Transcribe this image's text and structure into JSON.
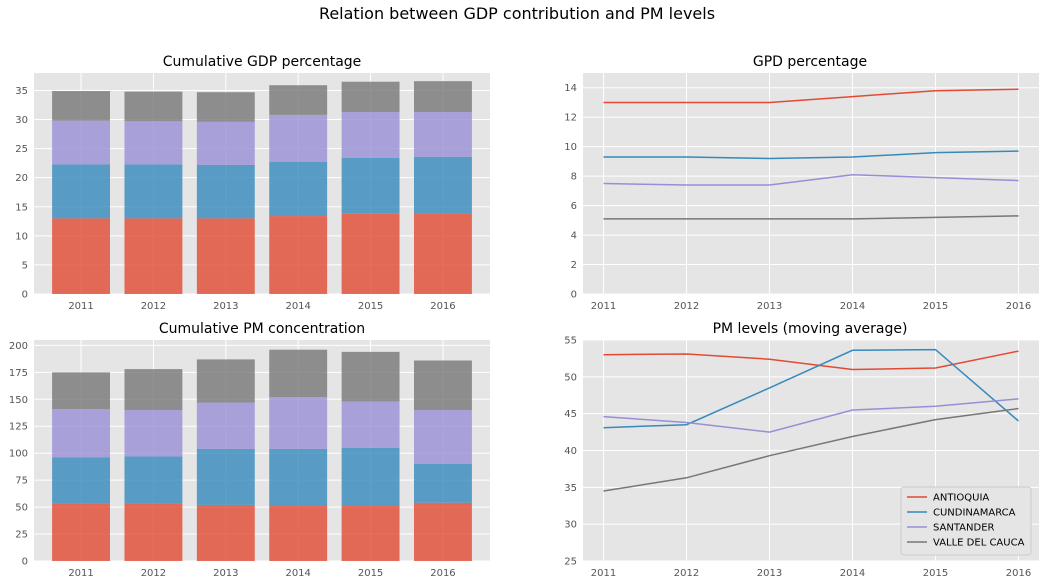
{
  "figure": {
    "title": "Relation between GDP contribution and PM levels"
  },
  "colors": {
    "ANTIOQUIA": "#E24A33",
    "CUNDINAMARCA": "#348ABD",
    "SANTANDER": "#988ED5",
    "VALLE DEL CAUCA": "#777777"
  },
  "chart_data": [
    {
      "type": "bar",
      "stacked": true,
      "title": "Cumulative GDP percentage",
      "categories": [
        "2011",
        "2012",
        "2013",
        "2014",
        "2015",
        "2016"
      ],
      "series": [
        {
          "name": "ANTIOQUIA",
          "values": [
            13.0,
            13.0,
            13.0,
            13.4,
            13.8,
            13.9
          ]
        },
        {
          "name": "CUNDINAMARCA",
          "values": [
            9.3,
            9.3,
            9.2,
            9.3,
            9.6,
            9.7
          ]
        },
        {
          "name": "SANTANDER",
          "values": [
            7.5,
            7.4,
            7.4,
            8.1,
            7.9,
            7.7
          ]
        },
        {
          "name": "VALLE DEL CAUCA",
          "values": [
            5.1,
            5.1,
            5.1,
            5.1,
            5.2,
            5.3
          ]
        }
      ],
      "ylim": [
        0,
        38
      ],
      "yticks": [
        0,
        5,
        10,
        15,
        20,
        25,
        30,
        35
      ],
      "grid": true
    },
    {
      "type": "line",
      "title": "GPD percentage",
      "x": [
        2011,
        2012,
        2013,
        2014,
        2015,
        2016
      ],
      "series": [
        {
          "name": "ANTIOQUIA",
          "values": [
            13.0,
            13.0,
            13.0,
            13.4,
            13.8,
            13.9
          ]
        },
        {
          "name": "CUNDINAMARCA",
          "values": [
            9.3,
            9.3,
            9.2,
            9.3,
            9.6,
            9.7
          ]
        },
        {
          "name": "SANTANDER",
          "values": [
            7.5,
            7.4,
            7.4,
            8.1,
            7.9,
            7.7
          ]
        },
        {
          "name": "VALLE DEL CAUCA",
          "values": [
            5.1,
            5.1,
            5.1,
            5.1,
            5.2,
            5.3
          ]
        }
      ],
      "ylim": [
        0,
        15
      ],
      "yticks": [
        0,
        2,
        4,
        6,
        8,
        10,
        12,
        14
      ],
      "grid": true
    },
    {
      "type": "bar",
      "stacked": true,
      "title": "Cumulative PM concentration",
      "categories": [
        "2011",
        "2012",
        "2013",
        "2014",
        "2015",
        "2016"
      ],
      "series": [
        {
          "name": "ANTIOQUIA",
          "values": [
            53,
            53,
            52,
            51,
            51,
            54
          ]
        },
        {
          "name": "CUNDINAMARCA",
          "values": [
            43,
            44,
            52,
            53,
            54,
            36
          ]
        },
        {
          "name": "SANTANDER",
          "values": [
            45,
            43,
            43,
            48,
            43,
            50
          ]
        },
        {
          "name": "VALLE DEL CAUCA",
          "values": [
            34,
            38,
            40,
            44,
            46,
            46
          ]
        }
      ],
      "ylim": [
        0,
        205
      ],
      "yticks": [
        0,
        25,
        50,
        75,
        100,
        125,
        150,
        175,
        200
      ],
      "grid": true
    },
    {
      "type": "line",
      "title": "PM levels (moving average)",
      "x": [
        2011,
        2012,
        2013,
        2014,
        2015,
        2016
      ],
      "series": [
        {
          "name": "ANTIOQUIA",
          "values": [
            53.0,
            53.1,
            52.4,
            51.0,
            51.2,
            53.5
          ]
        },
        {
          "name": "CUNDINAMARCA",
          "values": [
            43.1,
            43.5,
            48.5,
            53.6,
            53.7,
            44.0
          ]
        },
        {
          "name": "SANTANDER",
          "values": [
            44.6,
            43.8,
            42.5,
            45.5,
            46.0,
            47.0
          ]
        },
        {
          "name": "VALLE DEL CAUCA",
          "values": [
            34.5,
            36.3,
            39.3,
            41.9,
            44.2,
            45.7
          ]
        }
      ],
      "ylim": [
        25,
        55
      ],
      "yticks": [
        25,
        30,
        35,
        40,
        45,
        50,
        55
      ],
      "grid": true,
      "legend": {
        "position": "lower-right",
        "entries": [
          "ANTIOQUIA",
          "CUNDINAMARCA",
          "SANTANDER",
          "VALLE DEL CAUCA"
        ]
      }
    }
  ]
}
